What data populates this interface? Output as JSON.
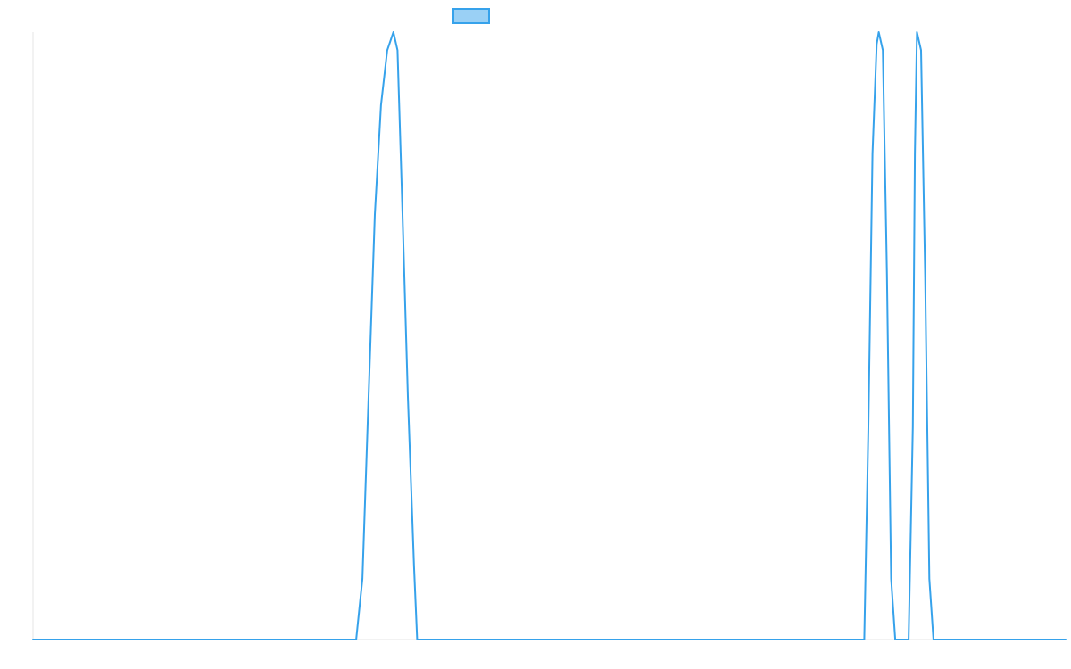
{
  "chart_data": {
    "type": "line",
    "title": "",
    "xlabel": "",
    "ylabel": "",
    "xlim": [
      0,
      1000
    ],
    "ylim": [
      0,
      1
    ],
    "grid": false,
    "legend": {
      "placement": "top-center",
      "show_text": false
    },
    "series": [
      {
        "color": "#36a2eb",
        "fill_color": "#9ad0f5",
        "x": [
          0,
          313,
          319,
          325,
          331,
          337,
          343,
          349,
          353,
          357,
          363,
          369,
          375,
          381,
          372,
          409,
          413,
          417,
          423,
          429,
          805,
          809,
          813,
          817,
          819,
          823,
          827,
          831,
          835,
          839,
          844,
          848,
          852,
          854,
          856,
          860,
          864,
          868,
          872,
          876,
          881,
          1000
        ],
        "y": [
          0,
          0,
          0.1,
          0.4,
          0.7,
          0.88,
          0.97,
          1.0,
          0.97,
          0.75,
          0.4,
          0.12,
          0.0,
          0.0,
          0.0,
          0.0,
          0.0,
          0.0,
          0.0,
          0.0,
          0.0,
          0.35,
          0.8,
          0.98,
          1.0,
          0.97,
          0.6,
          0.1,
          0.0,
          0.0,
          0.0,
          0.0,
          0.35,
          0.8,
          1.0,
          0.97,
          0.6,
          0.1,
          0.0,
          0.0,
          0.0,
          0.0
        ]
      }
    ]
  }
}
